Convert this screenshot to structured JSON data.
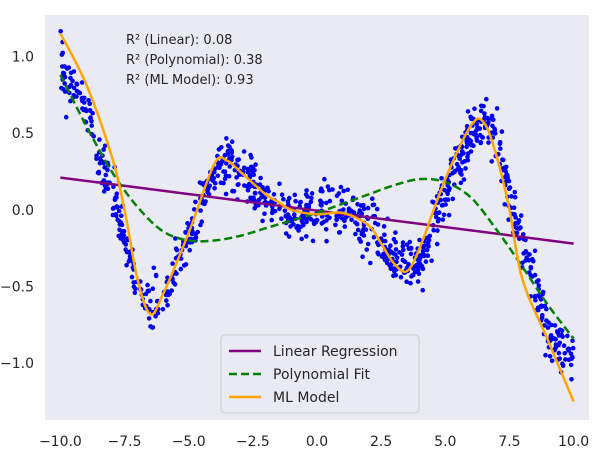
{
  "chart_data": {
    "type": "scatter",
    "title": "",
    "xlabel": "",
    "ylabel": "",
    "xlim": [
      -10.6,
      10.6
    ],
    "ylim": [
      -1.37,
      1.27
    ],
    "grid": false,
    "xticks": [
      -10.0,
      -7.5,
      -5.0,
      -2.5,
      0.0,
      2.5,
      5.0,
      7.5,
      10.0
    ],
    "xtick_labels": [
      "−10.0",
      "−7.5",
      "−5.0",
      "−2.5",
      "0.0",
      "2.5",
      "5.0",
      "7.5",
      "10.0"
    ],
    "yticks": [
      -1.0,
      -0.5,
      0.0,
      0.5,
      1.0
    ],
    "ytick_labels": [
      "−1.0",
      "−0.5",
      "0.0",
      "0.5",
      "1.0"
    ],
    "annotations": [
      "R² (Linear): 0.08",
      "R² (Polynomial): 0.38",
      "R² (ML Model): 0.93"
    ],
    "legend_position": "bottom-center",
    "scatter": {
      "name": "Data",
      "color": "#0000ee",
      "x_range": [
        -10,
        10
      ],
      "count": 1000,
      "noise_sd": 0.08,
      "underlying_x": [
        -10,
        -9,
        -8,
        -7,
        -6.5,
        -6,
        -5,
        -4,
        -3.5,
        -3,
        -2,
        -1,
        0,
        1,
        2,
        3,
        4,
        5,
        6,
        6.5,
        7,
        8,
        9,
        10
      ],
      "underlying_y": [
        0.95,
        0.65,
        0.1,
        -0.5,
        -0.65,
        -0.58,
        -0.2,
        0.25,
        0.3,
        0.25,
        0.05,
        -0.05,
        0.0,
        0.0,
        -0.1,
        -0.3,
        -0.35,
        0.1,
        0.5,
        0.58,
        0.45,
        -0.2,
        -0.8,
        -0.95
      ]
    },
    "series": [
      {
        "name": "Linear Regression",
        "color": "#800080",
        "style": "solid",
        "x": [
          -10,
          10
        ],
        "y": [
          0.21,
          -0.22
        ]
      },
      {
        "name": "Polynomial Fit",
        "color": "#008000",
        "style": "dashed",
        "x": [
          -10,
          -9,
          -8,
          -7,
          -6,
          -5,
          -4,
          -3,
          -2,
          -1,
          0,
          1,
          2,
          3,
          4,
          5,
          6,
          7,
          8,
          9,
          10
        ],
        "y": [
          0.88,
          0.55,
          0.25,
          0.02,
          -0.14,
          -0.2,
          -0.2,
          -0.17,
          -0.12,
          -0.07,
          -0.02,
          0.04,
          0.1,
          0.16,
          0.2,
          0.18,
          0.08,
          -0.13,
          -0.37,
          -0.62,
          -0.84
        ]
      },
      {
        "name": "ML Model",
        "color": "#ffa500",
        "style": "solid",
        "x": [
          -10,
          -9,
          -8,
          -7.5,
          -7,
          -6.5,
          -6,
          -5,
          -4,
          -3.5,
          -3,
          -2,
          -1.5,
          -1,
          0,
          1,
          2,
          2.5,
          3,
          3.5,
          4,
          5,
          6,
          6.5,
          7,
          7.5,
          8,
          9,
          10
        ],
        "y": [
          1.15,
          0.82,
          0.35,
          0.0,
          -0.45,
          -0.68,
          -0.55,
          -0.15,
          0.3,
          0.32,
          0.25,
          0.1,
          0.05,
          0.0,
          -0.03,
          -0.02,
          -0.1,
          -0.22,
          -0.35,
          -0.4,
          -0.25,
          0.2,
          0.55,
          0.57,
          0.35,
          0.0,
          -0.45,
          -0.85,
          -1.25
        ]
      }
    ]
  }
}
